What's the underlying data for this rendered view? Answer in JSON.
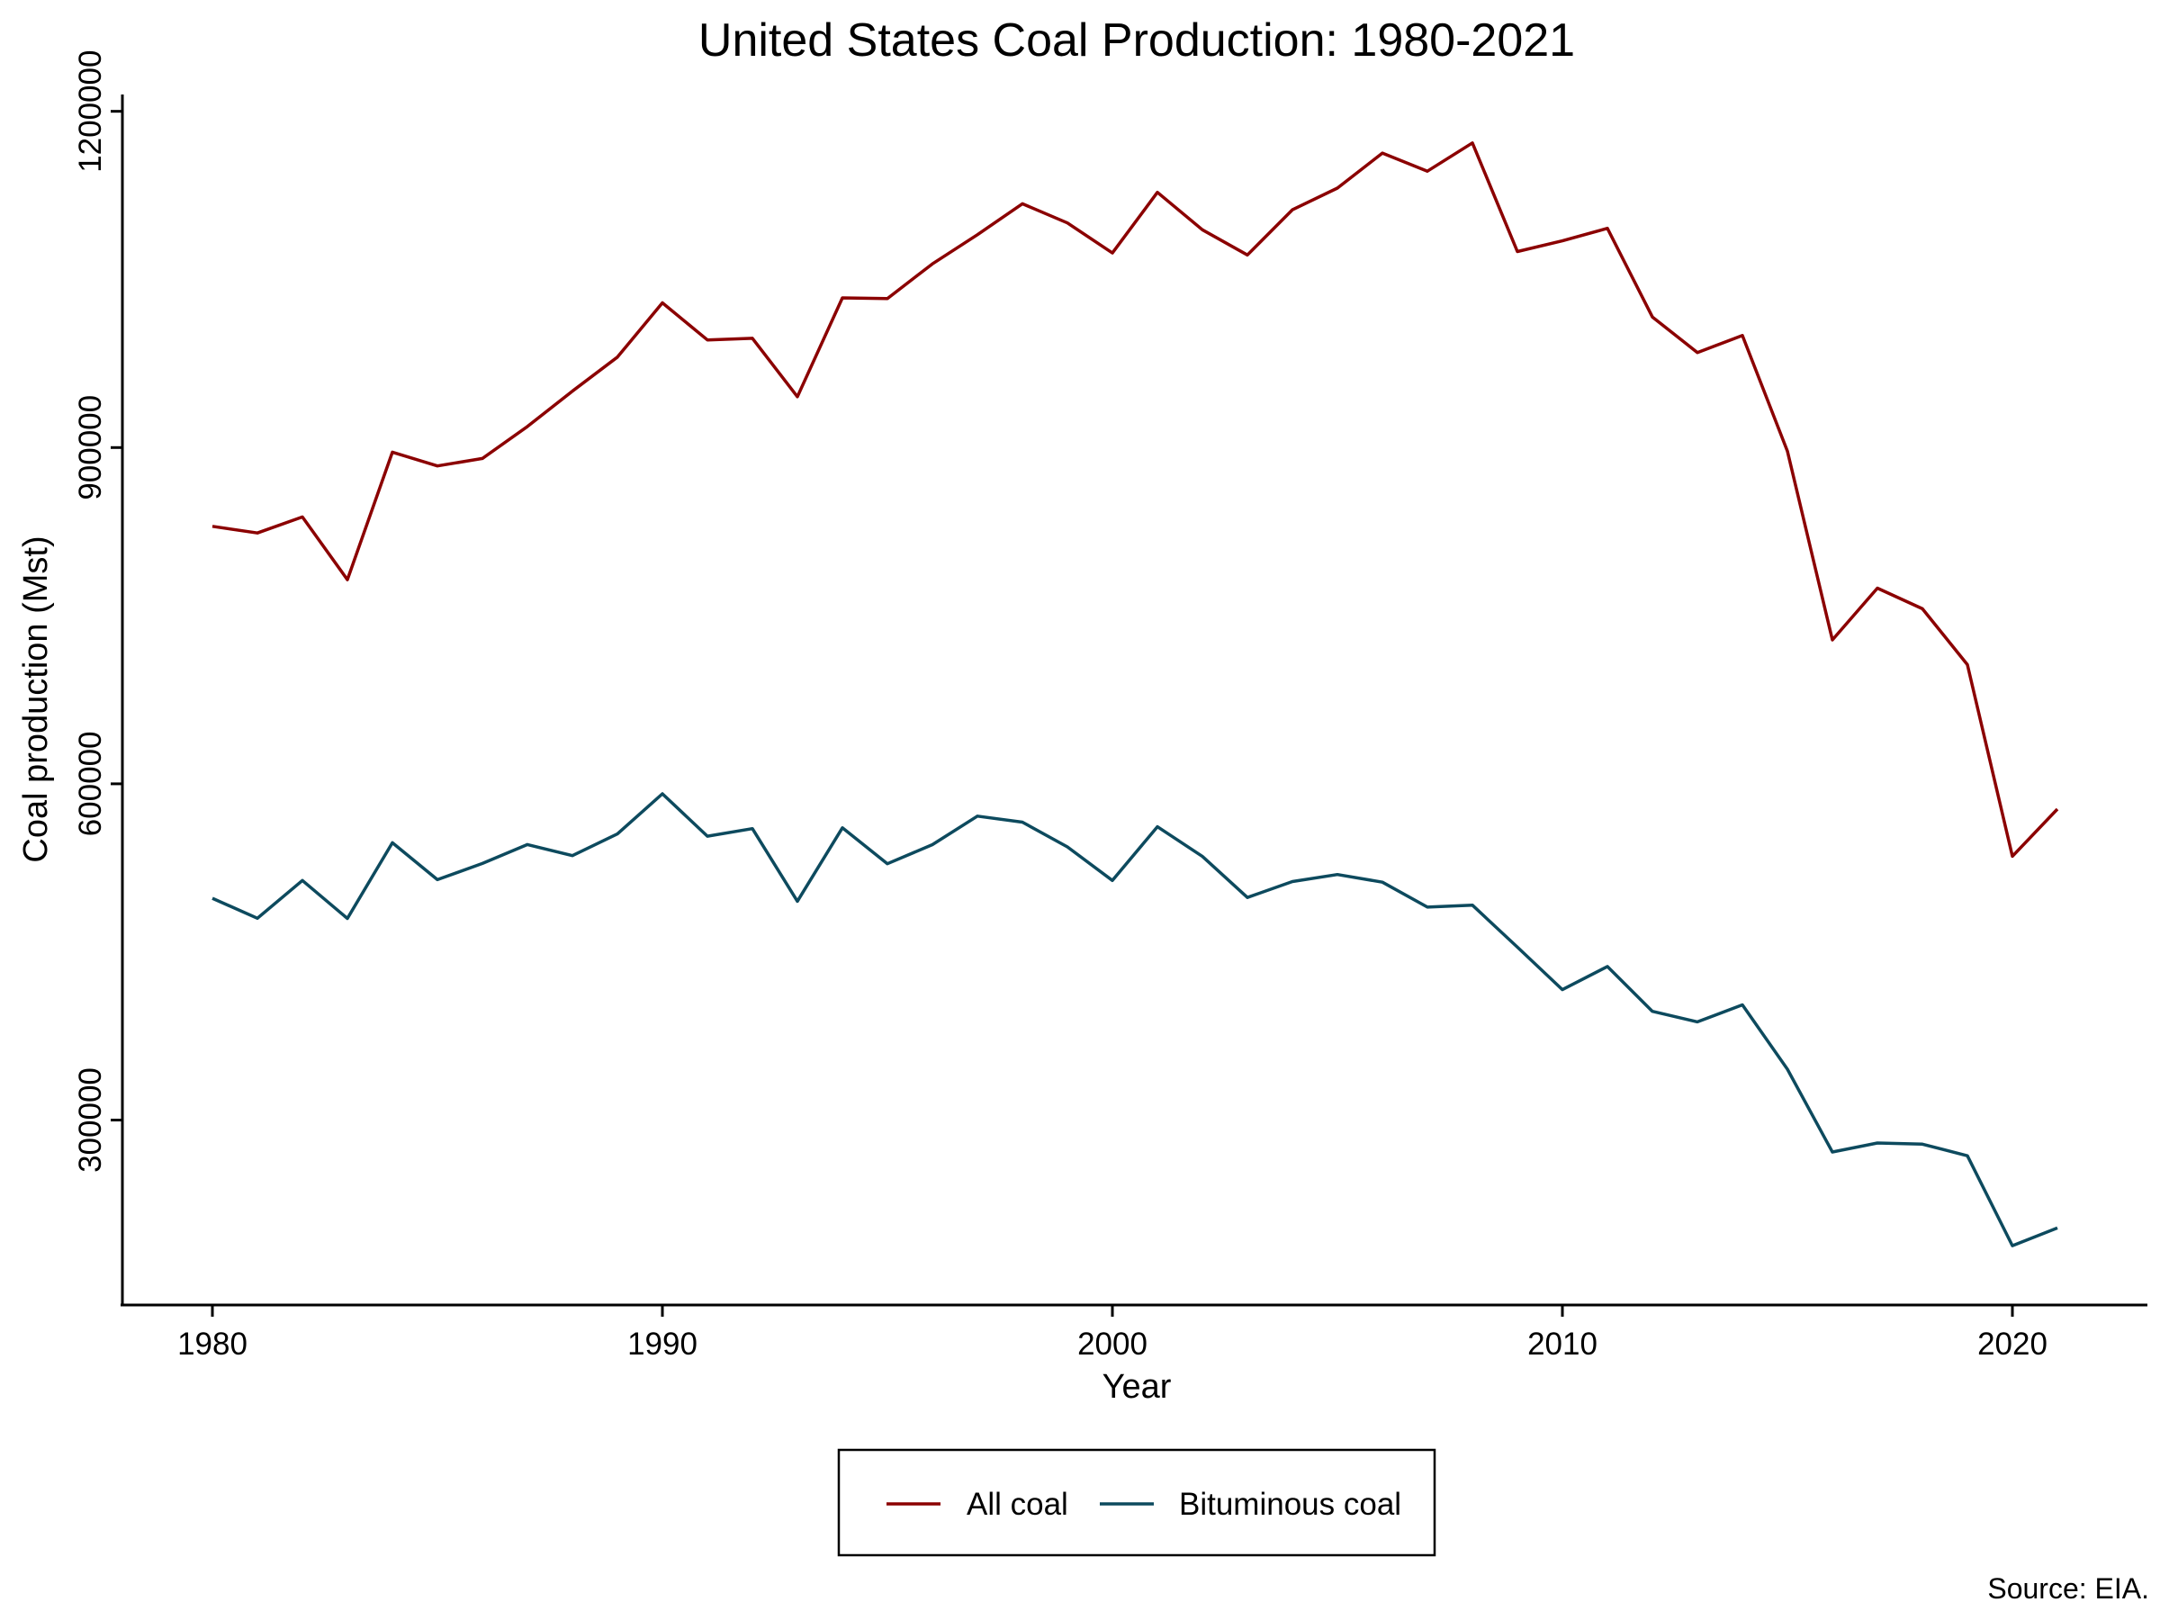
{
  "chart_data": {
    "type": "line",
    "title": "United States Coal Production: 1980-2021",
    "xlabel": "Year",
    "ylabel": "Coal production (Mst)",
    "note": "Source: EIA.",
    "x": [
      1980,
      1981,
      1982,
      1983,
      1984,
      1985,
      1986,
      1987,
      1988,
      1989,
      1990,
      1991,
      1992,
      1993,
      1994,
      1995,
      1996,
      1997,
      1998,
      1999,
      2000,
      2001,
      2002,
      2003,
      2004,
      2005,
      2006,
      2007,
      2008,
      2009,
      2010,
      2011,
      2012,
      2013,
      2014,
      2015,
      2016,
      2017,
      2018,
      2019,
      2020,
      2021
    ],
    "xlim": [
      1978,
      2023
    ],
    "ylim": [
      135000,
      1215000
    ],
    "x_ticks": [
      1980,
      1990,
      2000,
      2010,
      2020
    ],
    "x_tick_labels": [
      "1980",
      "1990",
      "2000",
      "2010",
      "2020"
    ],
    "y_ticks": [
      300000,
      600000,
      900000,
      1200000
    ],
    "y_tick_labels": [
      "300000",
      "600000",
      "900000",
      "1200000"
    ],
    "grid": false,
    "legend_position": "bottom",
    "series": [
      {
        "name": "All coal",
        "color": "#8b0000",
        "values": [
          829700,
          823800,
          838100,
          782100,
          895900,
          883600,
          890300,
          918800,
          950300,
          980700,
          1029100,
          996000,
          997500,
          945400,
          1033500,
          1033000,
          1063900,
          1089900,
          1117500,
          1100400,
          1073600,
          1127700,
          1094300,
          1071800,
          1112100,
          1131500,
          1162700,
          1146600,
          1171800,
          1074900,
          1084400,
          1095600,
          1016500,
          984800,
          1000000,
          896900,
          728400,
          774600,
          756200,
          706300,
          535400,
          577400
        ]
      },
      {
        "name": "Bituminous coal",
        "color": "#0d4a5e",
        "values": [
          497900,
          480000,
          513800,
          479900,
          547400,
          514500,
          528900,
          545800,
          535900,
          555300,
          591100,
          553300,
          560000,
          495200,
          560700,
          528700,
          545700,
          571200,
          565800,
          543700,
          513800,
          561700,
          535200,
          498600,
          512800,
          519100,
          512200,
          490000,
          491800,
          454300,
          416400,
          437000,
          397000,
          387600,
          402800,
          345400,
          271500,
          279500,
          278500,
          268100,
          187900,
          203700
        ]
      }
    ]
  }
}
